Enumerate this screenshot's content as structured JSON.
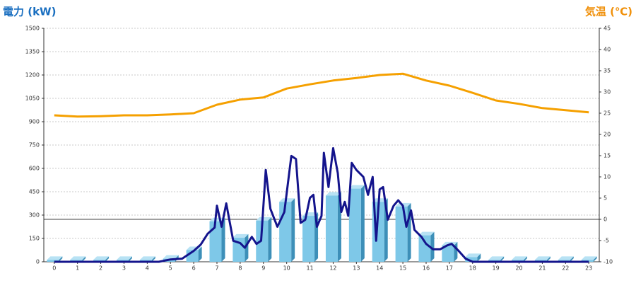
{
  "chart_data": {
    "type": "bar",
    "ylabel": "電力 (kW)",
    "y2label": "気温 (℃)",
    "x": [
      0,
      1,
      2,
      3,
      4,
      5,
      6,
      7,
      8,
      9,
      10,
      11,
      12,
      13,
      14,
      15,
      16,
      17,
      18,
      19,
      20,
      21,
      22,
      23
    ],
    "xlim": [
      -0.45,
      23.45
    ],
    "xticks": [
      0,
      1,
      2,
      3,
      4,
      5,
      6,
      7,
      8,
      9,
      10,
      11,
      12,
      13,
      14,
      15,
      16,
      17,
      18,
      19,
      20,
      21,
      22,
      23
    ],
    "ylim": [
      0,
      1500
    ],
    "yticks": [
      0,
      150,
      300,
      450,
      600,
      750,
      900,
      1050,
      1200,
      1350,
      1500
    ],
    "y2lim": [
      -10,
      45
    ],
    "y2ticks": [
      -10,
      -5,
      0,
      5,
      10,
      15,
      20,
      25,
      30,
      35,
      40,
      45
    ],
    "grid": true,
    "series": [
      {
        "type": "bar",
        "color": "#7ec8e8",
        "values": [
          12,
          12,
          12,
          12,
          12,
          20,
          75,
          260,
          155,
          265,
          385,
          295,
          425,
          470,
          385,
          355,
          170,
          105,
          30,
          12,
          12,
          12,
          12,
          12
        ]
      },
      {
        "type": "line",
        "color": "#14148c",
        "x": [
          0,
          1,
          2,
          3,
          4,
          4.5,
          5,
          5.5,
          6,
          6.3,
          6.6,
          6.9,
          7,
          7.2,
          7.4,
          7.7,
          8,
          8.2,
          8.5,
          8.7,
          8.9,
          9.1,
          9.3,
          9.6,
          9.9,
          10.2,
          10.4,
          10.6,
          10.8,
          11,
          11.15,
          11.3,
          11.5,
          11.6,
          11.8,
          12,
          12.2,
          12.35,
          12.5,
          12.65,
          12.8,
          13,
          13.3,
          13.5,
          13.7,
          13.85,
          14,
          14.15,
          14.35,
          14.6,
          14.8,
          15,
          15.15,
          15.35,
          15.5,
          15.8,
          16,
          16.3,
          16.6,
          16.9,
          17.1,
          17.4,
          17.7,
          18,
          19,
          20,
          21,
          22,
          23
        ],
        "values": [
          0,
          0,
          0,
          0,
          0,
          0,
          15,
          20,
          70,
          110,
          180,
          220,
          360,
          225,
          375,
          135,
          120,
          90,
          160,
          115,
          135,
          590,
          340,
          225,
          320,
          680,
          660,
          250,
          270,
          410,
          430,
          225,
          295,
          700,
          480,
          730,
          570,
          320,
          385,
          295,
          635,
          590,
          545,
          430,
          545,
          135,
          465,
          480,
          270,
          360,
          395,
          360,
          225,
          330,
          205,
          160,
          115,
          80,
          80,
          105,
          115,
          70,
          20,
          0,
          0,
          0,
          0,
          0,
          0
        ]
      },
      {
        "type": "line",
        "axis": "y2",
        "color": "#f5a000",
        "values": [
          24.5,
          24.2,
          24.3,
          24.5,
          24.5,
          24.7,
          25.0,
          27.0,
          28.2,
          28.7,
          30.8,
          31.8,
          32.7,
          33.3,
          34.0,
          34.3,
          32.7,
          31.5,
          29.8,
          28.0,
          27.2,
          26.2,
          25.7,
          25.2
        ]
      }
    ]
  }
}
